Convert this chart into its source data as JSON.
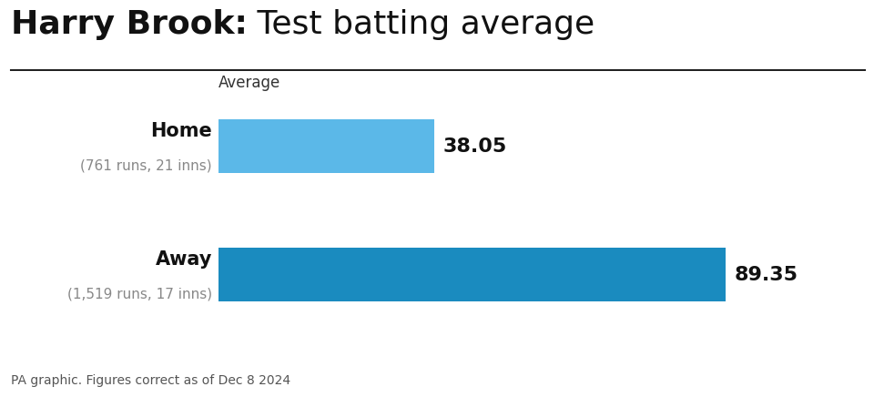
{
  "title_bold": "Harry Brook:",
  "title_normal": " Test batting average",
  "categories": [
    "Home",
    "Away"
  ],
  "sub_labels": [
    "(761 runs, 21 inns)",
    "(1,519 runs, 17 inns)"
  ],
  "values": [
    38.05,
    89.35
  ],
  "value_labels": [
    "38.05",
    "89.35"
  ],
  "bar_colors": [
    "#5bb8e8",
    "#1a8bbf"
  ],
  "axis_label": "Average",
  "max_val": 97,
  "footer": "PA graphic. Figures correct as of Dec 8 2024",
  "bg_color": "#ffffff",
  "title_fontsize": 26,
  "bar_label_fontsize": 16,
  "category_fontsize": 15,
  "sublabel_fontsize": 11,
  "footer_fontsize": 10,
  "axis_label_fontsize": 12
}
